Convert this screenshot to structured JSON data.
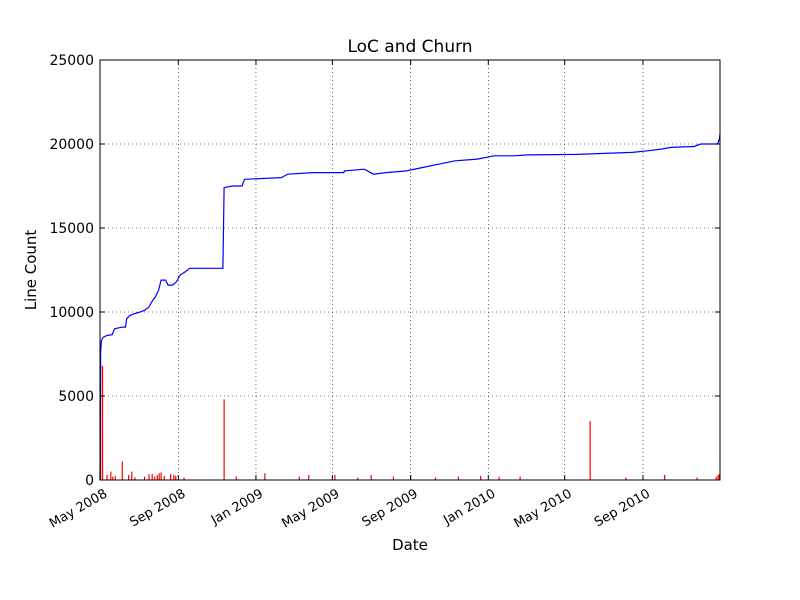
{
  "chart_data": {
    "type": "line",
    "title": "LoC and Churn",
    "xlabel": "Date",
    "ylabel": "Line Count",
    "xlim": [
      "2008-05-01",
      "2010-12-31"
    ],
    "ylim": [
      0,
      25000
    ],
    "yticks": [
      0,
      5000,
      10000,
      15000,
      20000,
      25000
    ],
    "xticks": [
      {
        "date": "2008-05-01",
        "label": "May 2008"
      },
      {
        "date": "2008-09-01",
        "label": "Sep 2008"
      },
      {
        "date": "2009-01-01",
        "label": "Jan 2009"
      },
      {
        "date": "2009-05-01",
        "label": "May 2009"
      },
      {
        "date": "2009-09-01",
        "label": "Sep 2009"
      },
      {
        "date": "2010-01-01",
        "label": "Jan 2010"
      },
      {
        "date": "2010-05-01",
        "label": "May 2010"
      },
      {
        "date": "2010-09-01",
        "label": "Sep 2010"
      }
    ],
    "grid": true,
    "series": [
      {
        "kind": "line",
        "color": "#0000ff",
        "points": [
          [
            "2008-05-01",
            0
          ],
          [
            "2008-05-02",
            7500
          ],
          [
            "2008-05-03",
            8300
          ],
          [
            "2008-05-06",
            8500
          ],
          [
            "2008-05-12",
            8600
          ],
          [
            "2008-05-20",
            8650
          ],
          [
            "2008-05-24",
            9000
          ],
          [
            "2008-06-05",
            9100
          ],
          [
            "2008-06-10",
            9100
          ],
          [
            "2008-06-12",
            9600
          ],
          [
            "2008-06-17",
            9800
          ],
          [
            "2008-06-24",
            9900
          ],
          [
            "2008-07-03",
            10000
          ],
          [
            "2008-07-10",
            10100
          ],
          [
            "2008-07-17",
            10300
          ],
          [
            "2008-07-23",
            10700
          ],
          [
            "2008-07-27",
            10900
          ],
          [
            "2008-08-01",
            11300
          ],
          [
            "2008-08-05",
            11900
          ],
          [
            "2008-08-12",
            11900
          ],
          [
            "2008-08-16",
            11600
          ],
          [
            "2008-08-23",
            11600
          ],
          [
            "2008-08-29",
            11800
          ],
          [
            "2008-09-04",
            12200
          ],
          [
            "2008-09-12",
            12400
          ],
          [
            "2008-09-19",
            12600
          ],
          [
            "2008-11-10",
            12600
          ],
          [
            "2008-11-12",
            17400
          ],
          [
            "2008-11-25",
            17500
          ],
          [
            "2008-12-10",
            17500
          ],
          [
            "2008-12-14",
            17900
          ],
          [
            "2009-02-10",
            18000
          ],
          [
            "2009-02-15",
            18100
          ],
          [
            "2009-02-20",
            18200
          ],
          [
            "2009-04-01",
            18300
          ],
          [
            "2009-05-19",
            18300
          ],
          [
            "2009-05-20",
            18400
          ],
          [
            "2009-06-20",
            18500
          ],
          [
            "2009-07-05",
            18200
          ],
          [
            "2009-07-25",
            18300
          ],
          [
            "2009-08-25",
            18400
          ],
          [
            "2009-09-20",
            18600
          ],
          [
            "2009-10-15",
            18800
          ],
          [
            "2009-11-10",
            19000
          ],
          [
            "2009-12-15",
            19100
          ],
          [
            "2010-01-10",
            19300
          ],
          [
            "2010-02-10",
            19300
          ],
          [
            "2010-03-05",
            19350
          ],
          [
            "2010-05-20",
            19380
          ],
          [
            "2010-08-15",
            19500
          ],
          [
            "2010-09-10",
            19600
          ],
          [
            "2010-10-01",
            19700
          ],
          [
            "2010-10-15",
            19800
          ],
          [
            "2010-11-20",
            19850
          ],
          [
            "2010-12-01",
            20000
          ],
          [
            "2010-12-27",
            20000
          ],
          [
            "2010-12-30",
            20300
          ],
          [
            "2010-12-31",
            20600
          ]
        ]
      },
      {
        "kind": "bars",
        "color": "#ff0000",
        "points": [
          [
            "2008-05-02",
            6900
          ],
          [
            "2008-05-05",
            6800
          ],
          [
            "2008-05-12",
            300
          ],
          [
            "2008-05-18",
            500
          ],
          [
            "2008-05-21",
            200
          ],
          [
            "2008-05-25",
            250
          ],
          [
            "2008-06-05",
            1100
          ],
          [
            "2008-06-15",
            300
          ],
          [
            "2008-06-20",
            500
          ],
          [
            "2008-06-25",
            150
          ],
          [
            "2008-07-10",
            200
          ],
          [
            "2008-07-17",
            350
          ],
          [
            "2008-07-22",
            350
          ],
          [
            "2008-07-26",
            200
          ],
          [
            "2008-07-30",
            300
          ],
          [
            "2008-08-02",
            400
          ],
          [
            "2008-08-05",
            450
          ],
          [
            "2008-08-10",
            250
          ],
          [
            "2008-08-20",
            350
          ],
          [
            "2008-08-25",
            300
          ],
          [
            "2008-08-28",
            250
          ],
          [
            "2008-09-10",
            150
          ],
          [
            "2008-11-12",
            4800
          ],
          [
            "2008-12-01",
            200
          ],
          [
            "2009-01-15",
            400
          ],
          [
            "2009-03-10",
            200
          ],
          [
            "2009-03-25",
            300
          ],
          [
            "2009-05-05",
            300
          ],
          [
            "2009-06-10",
            150
          ],
          [
            "2009-07-01",
            300
          ],
          [
            "2009-08-05",
            200
          ],
          [
            "2009-09-01",
            250
          ],
          [
            "2009-10-10",
            150
          ],
          [
            "2009-11-15",
            200
          ],
          [
            "2009-12-20",
            250
          ],
          [
            "2010-01-18",
            200
          ],
          [
            "2010-02-20",
            200
          ],
          [
            "2010-06-10",
            3500
          ],
          [
            "2010-08-05",
            150
          ],
          [
            "2010-10-05",
            300
          ],
          [
            "2010-11-25",
            150
          ],
          [
            "2010-12-25",
            200
          ],
          [
            "2010-12-28",
            300
          ],
          [
            "2010-12-30",
            350
          ]
        ]
      }
    ]
  }
}
